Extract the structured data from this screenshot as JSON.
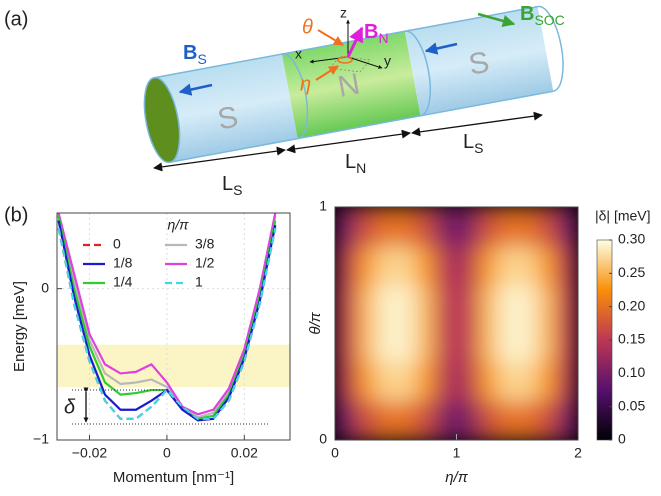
{
  "panel_a": {
    "label": "(a)",
    "b_s": {
      "main": "B",
      "sub": "S"
    },
    "b_soc": {
      "main": "B",
      "sub": "SOC"
    },
    "b_n": {
      "main": "B",
      "sub": "N"
    },
    "theta": "θ",
    "eta": "η",
    "axis_x": "x",
    "axis_y": "y",
    "axis_z": "z",
    "segments": [
      "S",
      "N",
      "S"
    ],
    "lengths": [
      {
        "main": "L",
        "sub": "S"
      },
      {
        "main": "L",
        "sub": "N"
      },
      {
        "main": "L",
        "sub": "S"
      }
    ]
  },
  "panel_b_label": "(b)",
  "chart_data": [
    {
      "type": "line",
      "xlabel": "Momentum [nm⁻¹]",
      "ylabel": "Energy [meV]",
      "legend_title": "η/π",
      "annotation": "δ",
      "x": [
        -0.028,
        -0.024,
        -0.02,
        -0.016,
        -0.012,
        -0.008,
        -0.004,
        0,
        0.004,
        0.008,
        0.012,
        0.016,
        0.02,
        0.024,
        0.028
      ],
      "xlim": [
        -0.0284,
        0.0318
      ],
      "ylim": [
        -1,
        0.5
      ],
      "xticks": [
        {
          "value": -0.02,
          "label": "−0.02"
        },
        0,
        0.02
      ],
      "yticks": [
        {
          "value": -1,
          "label": "−1"
        },
        0
      ],
      "shaded_band": [
        -0.65,
        -0.37
      ],
      "shaded_color": "#fbf5c6",
      "series": [
        {
          "name": "0",
          "color": "#e0202a",
          "dashed": true,
          "values": [
            0.4,
            -0.1,
            -0.48,
            -0.74,
            -0.86,
            -0.86,
            -0.78,
            -0.67,
            -0.78,
            -0.86,
            -0.86,
            -0.74,
            -0.48,
            -0.1,
            0.4
          ]
        },
        {
          "name": "1/8",
          "color": "#1a1ad0",
          "dashed": false,
          "values": [
            0.45,
            -0.05,
            -0.44,
            -0.7,
            -0.8,
            -0.8,
            -0.74,
            -0.67,
            -0.8,
            -0.87,
            -0.86,
            -0.72,
            -0.46,
            -0.08,
            0.42
          ]
        },
        {
          "name": "1/4",
          "color": "#2ecc2e",
          "dashed": false,
          "values": [
            0.48,
            0,
            -0.38,
            -0.62,
            -0.7,
            -0.69,
            -0.67,
            -0.67,
            -0.8,
            -0.86,
            -0.84,
            -0.7,
            -0.44,
            -0.05,
            0.45
          ]
        },
        {
          "name": "3/8",
          "color": "#b8b8b8",
          "dashed": false,
          "values": [
            0.49,
            0.05,
            -0.34,
            -0.56,
            -0.63,
            -0.62,
            -0.6,
            -0.65,
            -0.79,
            -0.85,
            -0.82,
            -0.68,
            -0.42,
            -0.02,
            0.48
          ]
        },
        {
          "name": "1/2",
          "color": "#e040e0",
          "dashed": false,
          "values": [
            0.5,
            0.1,
            -0.3,
            -0.5,
            -0.56,
            -0.55,
            -0.5,
            -0.62,
            -0.78,
            -0.83,
            -0.8,
            -0.66,
            -0.4,
            0,
            0.5
          ]
        },
        {
          "name": "1",
          "color": "#40d8e8",
          "dashed": true,
          "values": [
            0.4,
            -0.1,
            -0.48,
            -0.74,
            -0.86,
            -0.86,
            -0.78,
            -0.67,
            -0.78,
            -0.86,
            -0.86,
            -0.74,
            -0.48,
            -0.1,
            0.4
          ]
        }
      ]
    },
    {
      "type": "heatmap",
      "xlabel": "η/π",
      "ylabel": "θ/π",
      "xlim": [
        0,
        2
      ],
      "ylim": [
        0,
        1
      ],
      "xticks": [
        0,
        1,
        2
      ],
      "yticks": [
        0,
        1
      ],
      "z": [
        [
          0.1,
          0.17,
          0.2,
          0.2,
          0.17,
          0.1,
          0.1,
          0.17,
          0.2,
          0.2,
          0.17,
          0.1
        ],
        [
          0.14,
          0.23,
          0.27,
          0.27,
          0.23,
          0.14,
          0.14,
          0.23,
          0.27,
          0.27,
          0.23,
          0.14
        ],
        [
          0.15,
          0.25,
          0.29,
          0.29,
          0.25,
          0.15,
          0.15,
          0.25,
          0.29,
          0.29,
          0.25,
          0.15
        ],
        [
          0.15,
          0.25,
          0.29,
          0.29,
          0.25,
          0.15,
          0.15,
          0.25,
          0.29,
          0.29,
          0.25,
          0.15
        ],
        [
          0.14,
          0.23,
          0.27,
          0.27,
          0.23,
          0.14,
          0.14,
          0.23,
          0.27,
          0.27,
          0.23,
          0.14
        ],
        [
          0.1,
          0.17,
          0.2,
          0.2,
          0.17,
          0.1,
          0.1,
          0.17,
          0.2,
          0.2,
          0.17,
          0.1
        ]
      ],
      "colorbar": {
        "label": "|δ| [meV]",
        "lim": [
          0,
          0.3
        ],
        "ticks": [
          0,
          0.05,
          {
            "value": 0.1,
            "label": "0.10"
          },
          0.15,
          {
            "value": 0.2,
            "label": "0.20"
          },
          0.25,
          {
            "value": 0.3,
            "label": "0.30"
          }
        ]
      }
    }
  ]
}
